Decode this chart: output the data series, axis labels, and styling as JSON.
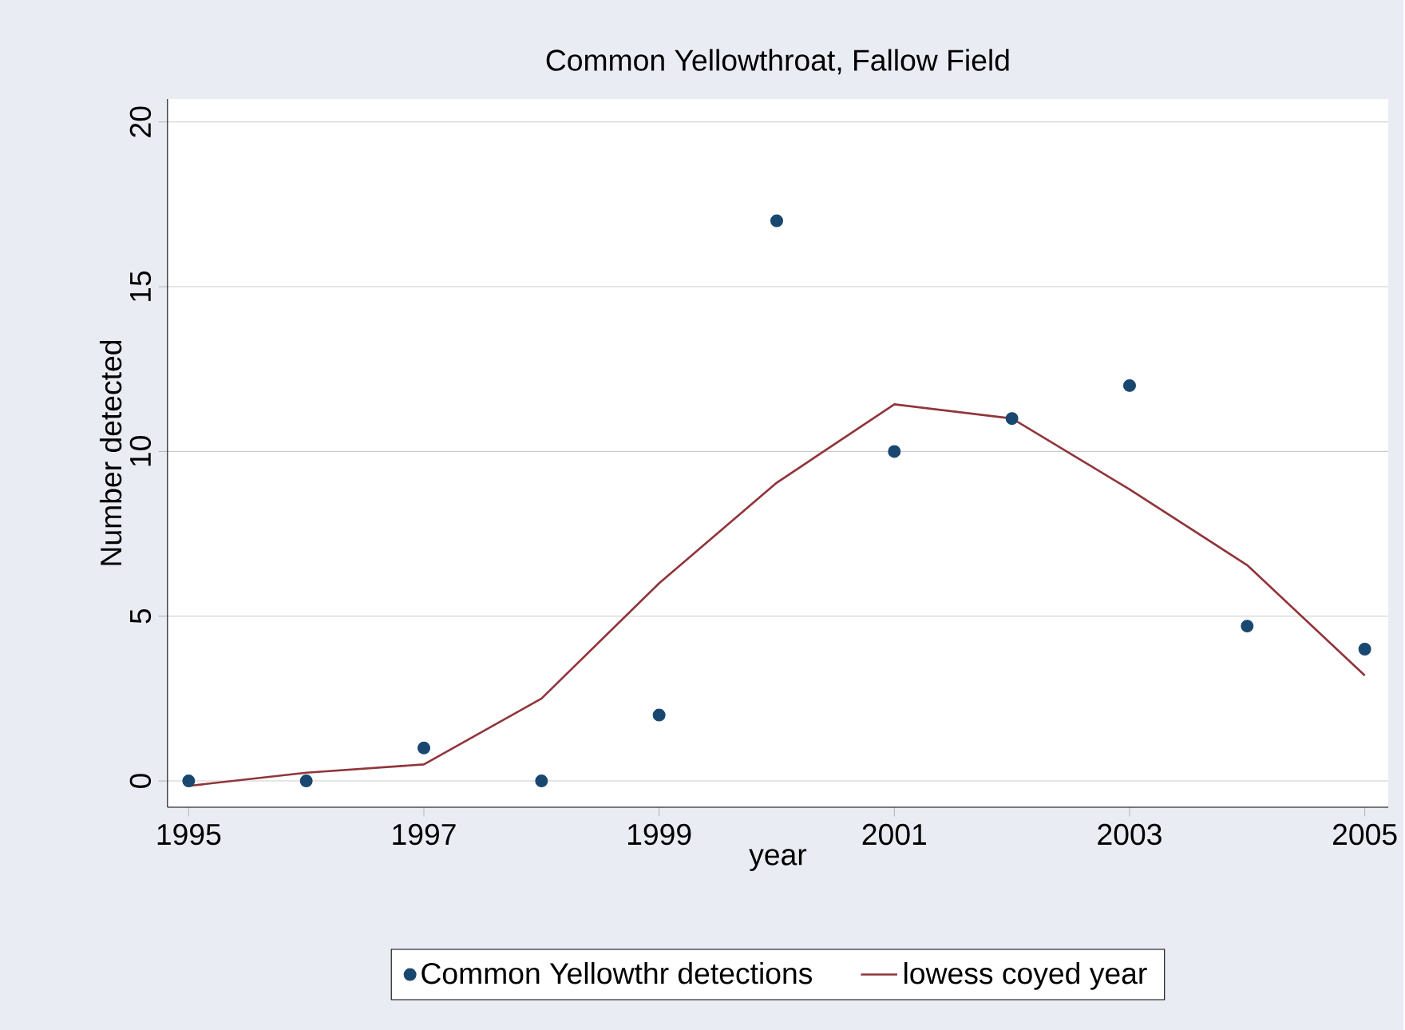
{
  "chart_data": {
    "type": "scatter",
    "title": "Common Yellowthroat, Fallow Field",
    "xlabel": "year",
    "ylabel": "Number detected",
    "xlim": [
      1994.82,
      2005.2
    ],
    "ylim": [
      -0.8,
      20.7
    ],
    "xticks": [
      1995,
      1997,
      1999,
      2001,
      2003,
      2005
    ],
    "yticks": [
      0,
      5,
      10,
      15,
      20
    ],
    "grid": "y",
    "legend": "bottom",
    "series": [
      {
        "name": "Common Yellowthr detections",
        "marker": "circle",
        "color": "#1a476f",
        "x": [
          1995,
          1996,
          1997,
          1998,
          1999,
          2000,
          2001,
          2002,
          2003,
          2004,
          2005
        ],
        "values": [
          0,
          0,
          1,
          0,
          2,
          17,
          10,
          11,
          12,
          4.7,
          4
        ]
      },
      {
        "name": "lowess coyed  year",
        "type": "line",
        "marker": "none",
        "color": "#90353b",
        "x": [
          1995,
          1996,
          1997,
          1998,
          1999,
          2000,
          2001,
          2002,
          2003,
          2004,
          2005
        ],
        "values": [
          -0.15,
          0.25,
          0.5,
          2.5,
          6.0,
          9.05,
          11.43,
          11.0,
          8.85,
          6.55,
          3.2
        ]
      }
    ]
  }
}
